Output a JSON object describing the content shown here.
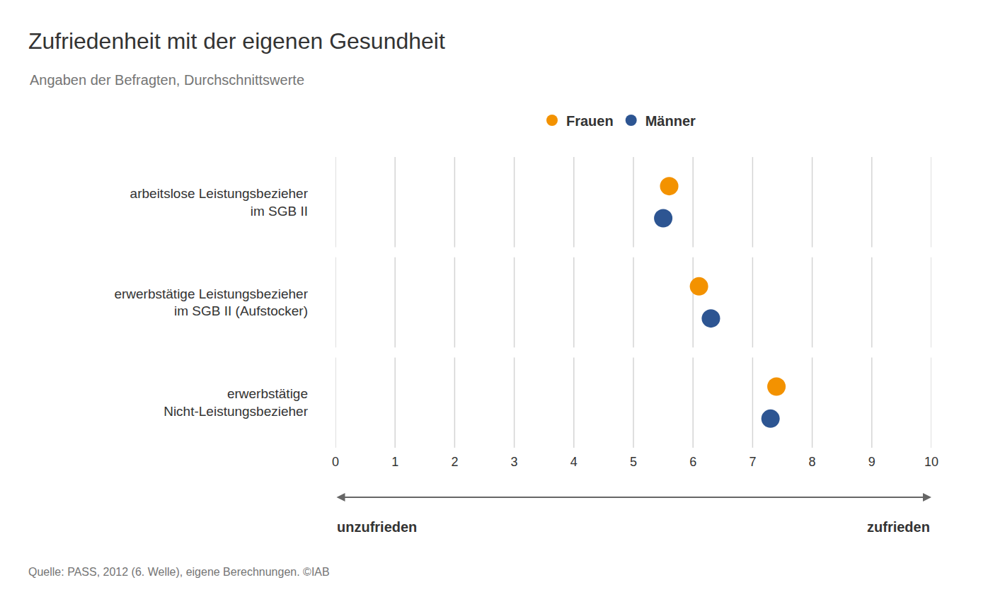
{
  "chart_data": {
    "type": "scatter",
    "marker": "circle",
    "orientation": "horizontal",
    "title": "Zufriedenheit mit der eigenen Gesundheit",
    "subtitle": "Angaben der Befragten, Durchschnittswerte",
    "categories": [
      "arbeitslose Leistungsbezieher\nim SGB II",
      "erwerbstätige Leistungsbezieher\nim SGB II (Aufstocker)",
      "erwerbstätige\nNicht-Leistungsbezieher"
    ],
    "series": [
      {
        "name": "Frauen",
        "color": "#f39200",
        "values": [
          5.6,
          6.1,
          7.4
        ]
      },
      {
        "name": "Männer",
        "color": "#2d5592",
        "values": [
          5.5,
          6.3,
          7.3
        ]
      }
    ],
    "xlim": [
      0,
      10
    ],
    "xticks": [
      0,
      1,
      2,
      3,
      4,
      5,
      6,
      7,
      8,
      9,
      10
    ],
    "grid": true,
    "legend": "top",
    "annotations": [
      "unzufrieden",
      "zufrieden"
    ],
    "source": "Quelle: PASS, 2012 (6. Welle), eigene Berechnungen. ©IAB"
  }
}
